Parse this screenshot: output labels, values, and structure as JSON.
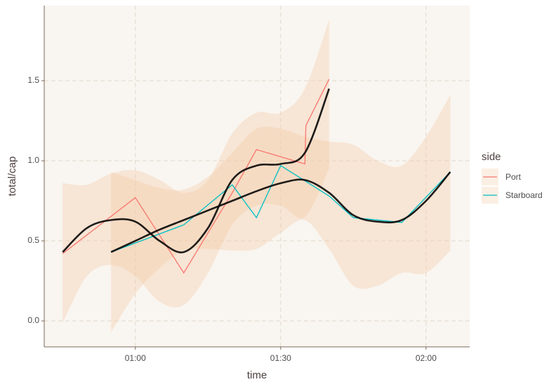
{
  "chart_data": {
    "type": "line",
    "x_label": "time",
    "y_label": "total/cap",
    "legend_title": "side",
    "xlim": [
      41.2,
      129
    ],
    "xticks": [
      {
        "value": 60,
        "label": "01:00"
      },
      {
        "value": 90,
        "label": "01:30"
      },
      {
        "value": 120,
        "label": "02:00"
      }
    ],
    "ylim": [
      -0.162,
      1.969
    ],
    "yticks": [
      {
        "value": 0,
        "label": "0.0"
      },
      {
        "value": 0.5,
        "label": "0.5"
      },
      {
        "value": 1,
        "label": "1.0"
      },
      {
        "value": 1.5,
        "label": "1.5"
      }
    ],
    "grid": true,
    "smooth_color": "#000000",
    "ribbon_color": "#f3c9a3",
    "series": [
      {
        "name": "Port",
        "color": "#F8766D",
        "x": [
          45,
          60,
          70,
          80,
          85,
          95,
          95.2,
          100
        ],
        "values": [
          0.42,
          0.77,
          0.3,
          0.8,
          1.07,
          0.98,
          1.22,
          1.51
        ],
        "smooth_x": [
          45,
          50,
          55,
          60,
          65,
          70,
          75,
          80,
          85,
          90,
          95,
          100
        ],
        "smooth": [
          0.43,
          0.58,
          0.63,
          0.62,
          0.5,
          0.43,
          0.58,
          0.88,
          0.97,
          0.98,
          1.05,
          1.45
        ],
        "smooth_lower": [
          -0.01,
          0.28,
          0.35,
          0.28,
          0.12,
          0.1,
          0.3,
          0.6,
          0.72,
          0.72,
          0.65,
          0.95
        ],
        "smooth_upper": [
          0.86,
          0.85,
          0.92,
          0.94,
          0.88,
          0.8,
          0.88,
          1.17,
          1.3,
          1.3,
          1.45,
          1.88
        ]
      },
      {
        "name": "Starboard",
        "color": "#00BFC4",
        "x": [
          55,
          70,
          80,
          85,
          90,
          100,
          105,
          115,
          125
        ],
        "values": [
          0.43,
          0.6,
          0.85,
          0.645,
          0.97,
          0.78,
          0.645,
          0.615,
          0.93
        ],
        "smooth_x": [
          55,
          60,
          65,
          70,
          75,
          80,
          85,
          90,
          95,
          100,
          105,
          110,
          115,
          120,
          125
        ],
        "smooth": [
          0.43,
          0.5,
          0.57,
          0.63,
          0.69,
          0.75,
          0.81,
          0.86,
          0.88,
          0.8,
          0.66,
          0.62,
          0.63,
          0.75,
          0.93
        ],
        "smooth_lower": [
          -0.07,
          0.17,
          0.33,
          0.44,
          0.45,
          0.44,
          0.45,
          0.55,
          0.63,
          0.45,
          0.22,
          0.22,
          0.3,
          0.3,
          0.44
        ],
        "smooth_upper": [
          0.93,
          0.88,
          0.83,
          0.82,
          0.9,
          1.05,
          1.2,
          1.2,
          1.15,
          1.12,
          1.1,
          1.0,
          0.97,
          1.15,
          1.41
        ]
      }
    ]
  }
}
